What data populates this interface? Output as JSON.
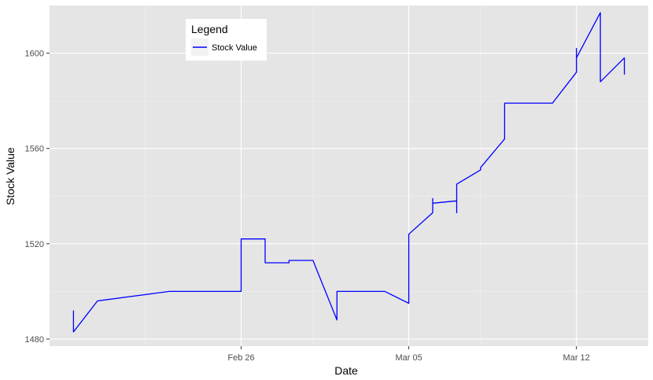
{
  "chart_data": {
    "type": "line",
    "title": "",
    "xlabel": "Date",
    "ylabel": "Stock Value",
    "x_tick_labels": [
      "Feb 26",
      "Mar 05",
      "Mar 12"
    ],
    "y_tick_labels": [
      "1480",
      "1520",
      "1560",
      "1600"
    ],
    "y_ticks": [
      1480,
      1520,
      1560,
      1600
    ],
    "xlim": [
      "2018-02-18",
      "2018-03-15"
    ],
    "ylim": [
      1477,
      1620
    ],
    "grid": true,
    "legend": {
      "title": "Legend",
      "placement": "top-left",
      "entries": [
        "Stock Value"
      ]
    },
    "series": [
      {
        "name": "Stock Value",
        "color": "#0000ff",
        "points": [
          [
            "2018-02-19",
            1492
          ],
          [
            "2018-02-19",
            1483
          ],
          [
            "2018-02-20",
            1496
          ],
          [
            "2018-02-23",
            1500
          ],
          [
            "2018-02-26",
            1500
          ],
          [
            "2018-02-26",
            1522
          ],
          [
            "2018-02-27",
            1522
          ],
          [
            "2018-02-27",
            1512
          ],
          [
            "2018-02-28",
            1512
          ],
          [
            "2018-02-28",
            1513
          ],
          [
            "2018-03-01",
            1513
          ],
          [
            "2018-03-02",
            1488
          ],
          [
            "2018-03-02",
            1500
          ],
          [
            "2018-03-04",
            1500
          ],
          [
            "2018-03-05",
            1495
          ],
          [
            "2018-03-05",
            1524
          ],
          [
            "2018-03-06",
            1533
          ],
          [
            "2018-03-06",
            1539
          ],
          [
            "2018-03-06",
            1537
          ],
          [
            "2018-03-07",
            1538
          ],
          [
            "2018-03-07",
            1533
          ],
          [
            "2018-03-07",
            1545
          ],
          [
            "2018-03-08",
            1551
          ],
          [
            "2018-03-08",
            1552
          ],
          [
            "2018-03-09",
            1564
          ],
          [
            "2018-03-09",
            1579
          ],
          [
            "2018-03-11",
            1579
          ],
          [
            "2018-03-12",
            1592
          ],
          [
            "2018-03-12",
            1602
          ],
          [
            "2018-03-12",
            1598
          ],
          [
            "2018-03-13",
            1617
          ],
          [
            "2018-03-13",
            1588
          ],
          [
            "2018-03-14",
            1598
          ],
          [
            "2018-03-14",
            1591
          ]
        ]
      }
    ]
  },
  "style": {
    "panel_background": "#e5e5e5",
    "grid_major": "#ffffff",
    "grid_minor": "#f2f2f2",
    "series_color": "#0000ff"
  }
}
